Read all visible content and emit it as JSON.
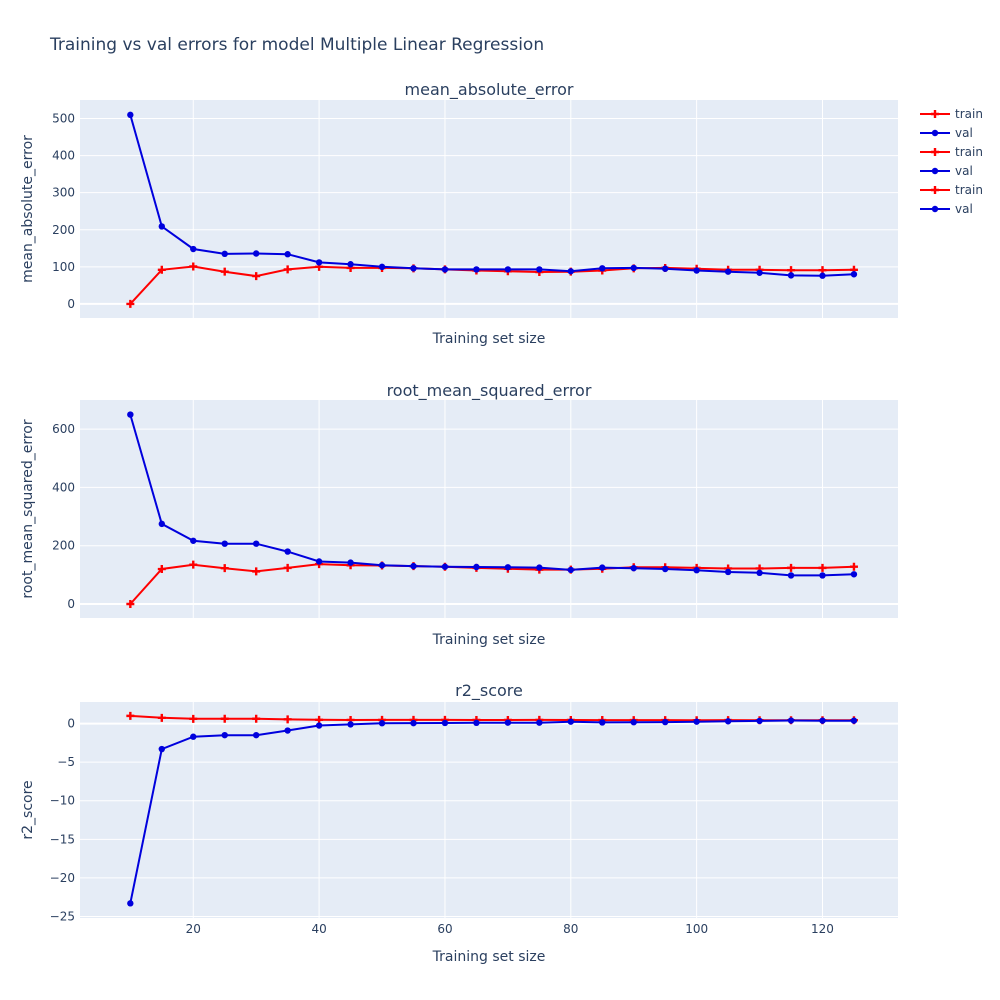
{
  "title": "Training vs val errors for model Multiple Linear Regression",
  "colors": {
    "train": "#ff0000",
    "val": "#0000dd",
    "plot_bg": "#e5ecf6",
    "grid": "#ffffff",
    "text": "#2a3f5f"
  },
  "legend": [
    {
      "label": "train",
      "series": "train"
    },
    {
      "label": "val",
      "series": "val"
    },
    {
      "label": "train",
      "series": "train"
    },
    {
      "label": "val",
      "series": "val"
    },
    {
      "label": "train",
      "series": "train"
    },
    {
      "label": "val",
      "series": "val"
    }
  ],
  "chart_data": [
    {
      "type": "line",
      "title": "mean_absolute_error",
      "xlabel": "Training set size",
      "ylabel": "mean_absolute_error",
      "xlim": [
        2,
        132
      ],
      "ylim": [
        -38,
        550
      ],
      "xticks": [
        20,
        40,
        60,
        80,
        100,
        120
      ],
      "show_xtick_labels": false,
      "yticks": [
        0,
        100,
        200,
        300,
        400,
        500
      ],
      "x": [
        10,
        15,
        20,
        25,
        30,
        35,
        40,
        45,
        50,
        55,
        60,
        65,
        70,
        75,
        80,
        85,
        90,
        95,
        100,
        105,
        110,
        115,
        120,
        125
      ],
      "series": [
        {
          "name": "train",
          "marker": "cross",
          "values": [
            0,
            92,
            101,
            87,
            75,
            93,
            100,
            97,
            97,
            96,
            93,
            90,
            88,
            86,
            87,
            90,
            96,
            97,
            95,
            92,
            92,
            91,
            91,
            92
          ]
        },
        {
          "name": "val",
          "marker": "circle",
          "values": [
            510,
            209,
            148,
            135,
            136,
            134,
            112,
            107,
            100,
            96,
            93,
            93,
            93,
            93,
            88,
            96,
            97,
            95,
            90,
            87,
            84,
            77,
            76,
            80
          ]
        }
      ]
    },
    {
      "type": "line",
      "title": "root_mean_squared_error",
      "xlabel": "Training set size",
      "ylabel": "root_mean_squared_error",
      "xlim": [
        2,
        132
      ],
      "ylim": [
        -48,
        700
      ],
      "xticks": [
        20,
        40,
        60,
        80,
        100,
        120
      ],
      "show_xtick_labels": false,
      "yticks": [
        0,
        200,
        400,
        600
      ],
      "x": [
        10,
        15,
        20,
        25,
        30,
        35,
        40,
        45,
        50,
        55,
        60,
        65,
        70,
        75,
        80,
        85,
        90,
        95,
        100,
        105,
        110,
        115,
        120,
        125
      ],
      "series": [
        {
          "name": "train",
          "marker": "cross",
          "values": [
            0,
            120,
            135,
            123,
            112,
            124,
            137,
            133,
            132,
            130,
            128,
            124,
            121,
            118,
            118,
            121,
            126,
            126,
            124,
            122,
            122,
            124,
            124,
            128
          ]
        },
        {
          "name": "val",
          "marker": "circle",
          "values": [
            650,
            275,
            217,
            207,
            207,
            180,
            146,
            142,
            133,
            130,
            128,
            127,
            126,
            125,
            117,
            125,
            123,
            120,
            116,
            110,
            107,
            98,
            98,
            102
          ]
        }
      ]
    },
    {
      "type": "line",
      "title": "r2_score",
      "xlabel": "Training set size",
      "ylabel": "r2_score",
      "xlim": [
        2,
        132
      ],
      "ylim": [
        -25.2,
        2.8
      ],
      "xticks": [
        20,
        40,
        60,
        80,
        100,
        120
      ],
      "show_xtick_labels": true,
      "yticks": [
        -25,
        -20,
        -15,
        -10,
        -5,
        0
      ],
      "x": [
        10,
        15,
        20,
        25,
        30,
        35,
        40,
        45,
        50,
        55,
        60,
        65,
        70,
        75,
        80,
        85,
        90,
        95,
        100,
        105,
        110,
        115,
        120,
        125
      ],
      "series": [
        {
          "name": "train",
          "marker": "cross",
          "values": [
            1.0,
            0.75,
            0.62,
            0.63,
            0.63,
            0.55,
            0.49,
            0.47,
            0.48,
            0.48,
            0.48,
            0.47,
            0.47,
            0.48,
            0.47,
            0.46,
            0.45,
            0.45,
            0.44,
            0.45,
            0.44,
            0.44,
            0.43,
            0.44
          ]
        },
        {
          "name": "val",
          "marker": "circle",
          "values": [
            -23.3,
            -3.3,
            -1.7,
            -1.5,
            -1.5,
            -0.9,
            -0.25,
            -0.1,
            0.05,
            0.06,
            0.08,
            0.1,
            0.12,
            0.12,
            0.25,
            0.15,
            0.18,
            0.2,
            0.25,
            0.3,
            0.35,
            0.4,
            0.38,
            0.38
          ]
        }
      ]
    }
  ]
}
